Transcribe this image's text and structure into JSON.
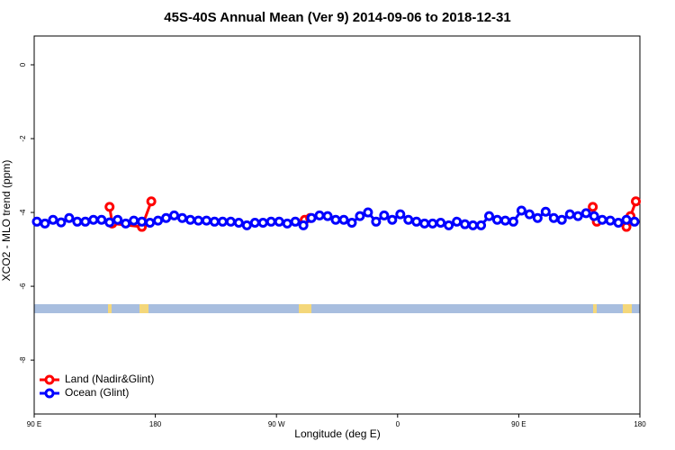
{
  "chart_data": {
    "type": "line",
    "title": "45S-40S Annual Mean (Ver 9)   2014-09-06 to 2018-12-31",
    "x_label": "Longitude (deg E)",
    "y_label": "XCO2 - MLO trend (ppm)",
    "xlim": [
      90,
      540
    ],
    "ylim": [
      -9.46,
      0.78
    ],
    "xticks": [
      {
        "value": 90,
        "label": "90 E"
      },
      {
        "value": 180,
        "label": "180"
      },
      {
        "value": 270,
        "label": "90 W"
      },
      {
        "value": 360,
        "label": "0"
      },
      {
        "value": 450,
        "label": "90 E"
      },
      {
        "value": 540,
        "label": "180"
      }
    ],
    "yticks": [
      0,
      -2,
      -4,
      -6,
      -8
    ],
    "legend": "bottom-left",
    "series": [
      {
        "name": "Land (Nadir&Glint)",
        "color": "#ff0000",
        "x": [
          146,
          148,
          170,
          177,
          230,
          291,
          295,
          400,
          505,
          508,
          520,
          530,
          533,
          537
        ],
        "values": [
          -3.85,
          -4.3,
          -4.39,
          -3.7,
          null,
          -4.2,
          -4.15,
          null,
          -3.85,
          -4.25,
          null,
          -4.39,
          -4.1,
          -3.7
        ]
      },
      {
        "name": "Ocean (Glint)",
        "color": "#0000ff",
        "x": [
          92,
          98,
          104,
          110,
          116,
          122,
          128,
          134,
          140,
          146,
          152,
          158,
          164,
          170,
          176,
          182,
          188,
          194,
          200,
          206,
          212,
          218,
          224,
          230,
          236,
          242,
          248,
          254,
          260,
          266,
          272,
          278,
          284,
          290,
          296,
          302,
          308,
          314,
          320,
          326,
          332,
          338,
          344,
          350,
          356,
          362,
          368,
          374,
          380,
          386,
          392,
          398,
          404,
          410,
          416,
          422,
          428,
          434,
          440,
          446,
          452,
          458,
          464,
          470,
          476,
          482,
          488,
          494,
          500,
          506,
          512,
          518,
          524,
          530,
          536
        ],
        "values": [
          -4.25,
          -4.3,
          -4.2,
          -4.27,
          -4.15,
          -4.25,
          -4.25,
          -4.2,
          -4.2,
          -4.27,
          -4.2,
          -4.3,
          -4.22,
          -4.25,
          -4.28,
          -4.22,
          -4.15,
          -4.08,
          -4.15,
          -4.2,
          -4.22,
          -4.22,
          -4.25,
          -4.25,
          -4.25,
          -4.28,
          -4.35,
          -4.28,
          -4.28,
          -4.25,
          -4.25,
          -4.3,
          -4.25,
          -4.35,
          -4.15,
          -4.08,
          -4.1,
          -4.2,
          -4.2,
          -4.28,
          -4.1,
          -4.0,
          -4.25,
          -4.08,
          -4.2,
          -4.05,
          -4.2,
          -4.25,
          -4.3,
          -4.3,
          -4.28,
          -4.35,
          -4.25,
          -4.32,
          -4.35,
          -4.35,
          -4.1,
          -4.2,
          -4.22,
          -4.25,
          -3.95,
          -4.05,
          -4.15,
          -3.98,
          -4.15,
          -4.2,
          -4.05,
          -4.1,
          -4.02,
          -4.1,
          -4.2,
          -4.22,
          -4.28,
          -4.2,
          -4.25
        ]
      }
    ]
  }
}
